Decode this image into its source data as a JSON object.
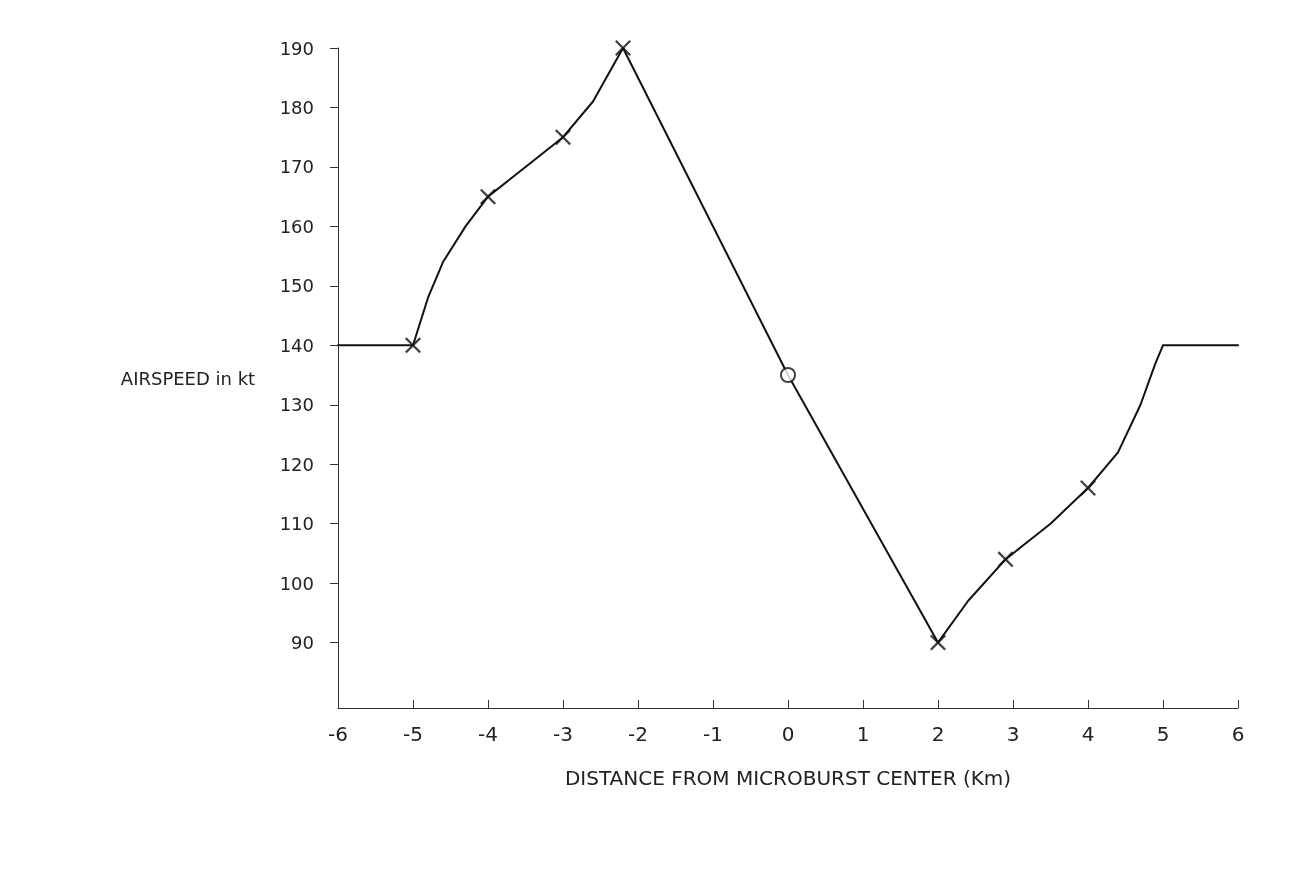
{
  "chart_data": {
    "type": "line",
    "xlabel": "DISTANCE FROM MICROBURST CENTER (Km)",
    "ylabel": "AIRSPEED in kt",
    "xlim": [
      -6,
      6
    ],
    "xticks": [
      -6,
      -5,
      -4,
      -3,
      -2,
      -1,
      0,
      1,
      2,
      3,
      4,
      5,
      6
    ],
    "ylim": [
      79,
      190
    ],
    "yticks": [
      90,
      100,
      110,
      120,
      130,
      140,
      150,
      160,
      170,
      180,
      190
    ],
    "grid": false,
    "series": [
      {
        "color": "#111111",
        "marker": "none",
        "line_style": "solid",
        "x": [
          -6,
          -5,
          -4.8,
          -4.6,
          -4.3,
          -4,
          -3.5,
          -3,
          -2.6,
          -2.2,
          0,
          2,
          2.4,
          2.9,
          3.5,
          4,
          4.4,
          4.7,
          4.9,
          5,
          6
        ],
        "values": [
          140,
          140,
          148,
          154,
          160,
          165,
          170,
          175,
          181,
          190,
          135,
          90,
          97,
          104,
          110,
          116,
          122,
          130,
          137,
          140,
          140
        ]
      },
      {
        "type": "scatter",
        "color": "#111111",
        "marker": "cross",
        "x": [
          -5,
          -4,
          -3,
          -2.2,
          2,
          2.9,
          4
        ],
        "values": [
          140,
          165,
          175,
          190,
          90,
          104,
          116
        ]
      },
      {
        "type": "scatter",
        "color": "#111111",
        "marker": "circle",
        "x": [
          0
        ],
        "values": [
          135
        ]
      }
    ]
  }
}
